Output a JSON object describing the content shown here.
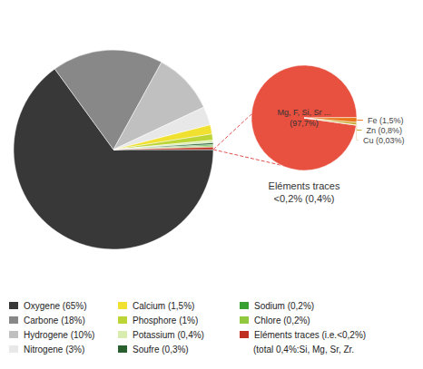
{
  "chart_data": [
    {
      "type": "pie",
      "categories": [
        "Oxygene (65%)",
        "Carbone (18%)",
        "Hydrogene (10%)",
        "Nitrogene (3%)",
        "Calcium (1,5%)",
        "Phosphore (1%)",
        "Potassium (0,4%)",
        "Soufre (0,3%)",
        "Sodium (0,2%)",
        "Chlore (0,2%)",
        "Eléments traces (i.e.<0,2%)"
      ],
      "values": [
        65,
        18,
        10,
        3,
        1.5,
        1.0,
        0.4,
        0.3,
        0.2,
        0.2,
        0.4
      ],
      "colors": [
        "#383838",
        "#888888",
        "#c0c0c0",
        "#e8e8e8",
        "#f0e030",
        "#bcd435",
        "#d8ecb0",
        "#2a6030",
        "#38a030",
        "#90c840",
        "#c03020"
      ],
      "legend": "bottom",
      "annotations": [
        "(total 0,4%:Si, Mg, Sr, Zr."
      ]
    },
    {
      "type": "pie",
      "title": "Eléments traces\n<0,2% (0,4%)",
      "categories": [
        "Mg, F, Si, Sr ...\n(97,7%)",
        "Fe (1,5%)",
        "Zn (0,8%)",
        "Cu (0,03%)"
      ],
      "values": [
        97.7,
        1.5,
        0.8,
        0.03
      ],
      "colors": [
        "#e85040",
        "#e8781a",
        "#c8a830",
        "#f0e0c8"
      ],
      "color": "#e05050",
      "line_style": "dashed"
    }
  ]
}
